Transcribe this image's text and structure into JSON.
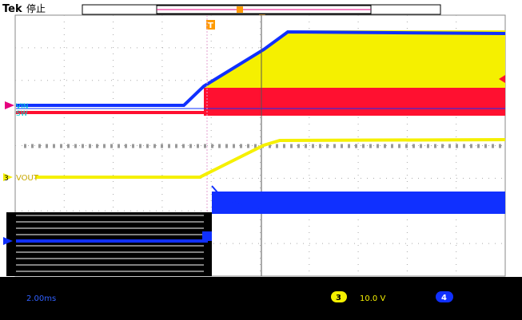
{
  "header": {
    "brand": "Tek",
    "status": "停止"
  },
  "channels": {
    "vin": {
      "label": "VIN",
      "color": "#00d4d4"
    },
    "sw": {
      "label": "SW",
      "color": "#e6007e"
    },
    "vout": {
      "label": "VOUT",
      "color": "#f5f000",
      "number": "3"
    },
    "ch4": {
      "number": "4",
      "color": "#1030ff"
    },
    "ch1": {
      "number": "1",
      "color": "#00c8c8"
    }
  },
  "markers": {
    "trigger": "T"
  },
  "readouts": {
    "timebase": "2.00ms",
    "ch3_scale": "10.0 V",
    "ch3_badge": "3",
    "ch4_badge": "4"
  },
  "colors": {
    "grid_bg": "#ffffff",
    "trace_yellow": "#f5f000",
    "trace_blue": "#1030ff",
    "trace_red": "#ff1030",
    "bottom_bar": "#000000"
  }
}
